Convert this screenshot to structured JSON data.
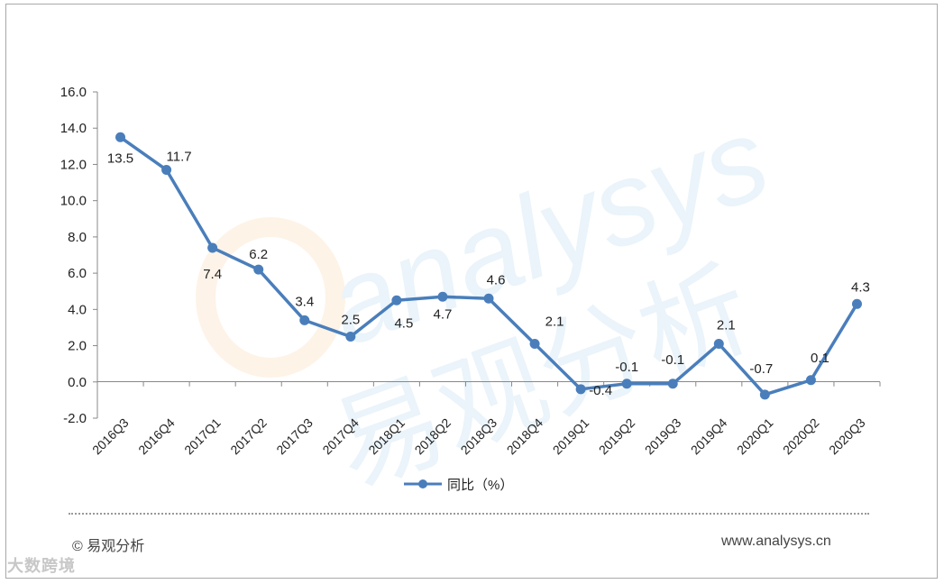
{
  "chart_data": {
    "type": "line",
    "categories": [
      "2016Q3",
      "2016Q4",
      "2017Q1",
      "2017Q2",
      "2017Q3",
      "2017Q4",
      "2018Q1",
      "2018Q2",
      "2018Q3",
      "2018Q4",
      "2019Q1",
      "2019Q2",
      "2019Q3",
      "2019Q4",
      "2020Q1",
      "2020Q2",
      "2020Q3"
    ],
    "series": [
      {
        "name": "同比（%）",
        "values": [
          13.5,
          11.7,
          7.4,
          6.2,
          3.4,
          2.5,
          4.5,
          4.7,
          4.6,
          2.1,
          -0.4,
          -0.1,
          -0.1,
          2.1,
          -0.7,
          0.1,
          4.3
        ],
        "labels": [
          "13.5",
          "11.7",
          "7.4",
          "6.2",
          "3.4",
          "2.5",
          "4.5",
          "4.7",
          "4.6",
          "2.1",
          "-0.4",
          "-0.1",
          "-0.1",
          "2.1",
          "-0.7",
          "0.1",
          "4.3"
        ]
      }
    ],
    "ylim": [
      -2.0,
      16.0
    ],
    "yticks": [
      "-2.0",
      "0.0",
      "2.0",
      "4.0",
      "6.0",
      "8.0",
      "10.0",
      "12.0",
      "14.0",
      "16.0"
    ],
    "grid": false,
    "legend": "bottom",
    "line_color": "#4a7ebb",
    "title": "",
    "xlabel": "",
    "ylabel": ""
  },
  "watermark": {
    "text": "analysys",
    "cn_text": "易观分析"
  },
  "footer": {
    "copyright": "© 易观分析",
    "url": "www.analysys.cn"
  },
  "brand_mark": {
    "text": "大数跨境"
  }
}
